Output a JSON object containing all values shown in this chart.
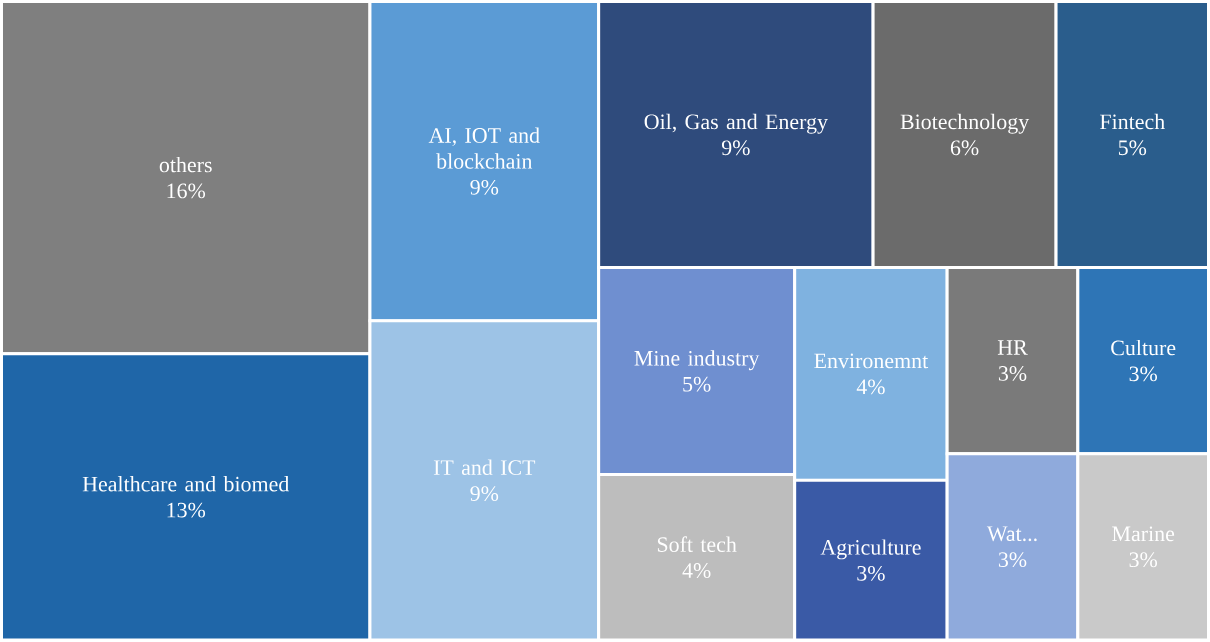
{
  "chart_data": {
    "type": "other",
    "categories": [
      "others",
      "Healthcare and biomed",
      "AI, IOT and blockchain",
      "IT and ICT",
      "Oil, Gas and Energy",
      "Biotechnology",
      "Fintech",
      "Mine industry",
      "Soft tech",
      "Environemnt",
      "Agriculture",
      "HR",
      "Culture",
      "Wat...",
      "Marine"
    ],
    "values": [
      16,
      13,
      9,
      9,
      9,
      6,
      5,
      5,
      4,
      4,
      3,
      3,
      3,
      3,
      3
    ],
    "value_labels": [
      "16%",
      "13%",
      "9%",
      "9%",
      "9%",
      "6%",
      "5%",
      "5%",
      "4%",
      "4%",
      "3%",
      "3%",
      "3%",
      "3%",
      "3%"
    ],
    "colors": [
      "#7f7f7f",
      "#1f66a8",
      "#5b9bd5",
      "#9dc3e6",
      "#2f4b7c",
      "#6b6b6b",
      "#2a5d8c",
      "#6f8fd0",
      "#bdbdbd",
      "#7fb2e0",
      "#3a5aa6",
      "#7a7a7a",
      "#2e75b6",
      "#8faadc",
      "#c9c9c9"
    ]
  }
}
